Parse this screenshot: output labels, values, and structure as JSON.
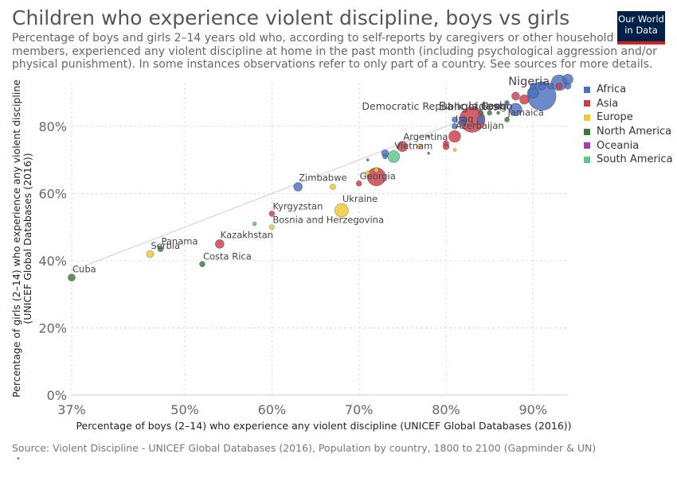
{
  "header": {
    "title": "Children who experience violent discipline, boys vs girls",
    "subtitle": "Percentage of boys and girls 2–14 years old who, according to self-reports by caregivers or other household members, experienced any violent discipline at home in the past month (including psychological aggression and/or physical punishment). In some instances observations refer to only part of a country. See sources for more details."
  },
  "logo": {
    "line1": "Our World",
    "line2": "in Data"
  },
  "footer": {
    "source": "Source: Violent Discipline - UNICEF Global Databases (2016), Population by country, 1800 to 2100 (Gapminder & UN)",
    "dot": "•"
  },
  "chart_data": {
    "type": "scatter",
    "xlabel": "Percentage of boys (2–14) who experience any violent discipline (UNICEF Global Databases (2016))",
    "ylabel": "Percentage of girls (2–14) who experience any violent discipline (UNICEF Global Databases (2016))",
    "xlim": [
      37,
      94
    ],
    "ylim": [
      0,
      93
    ],
    "xticks": [
      {
        "v": 37,
        "label": "37%"
      },
      {
        "v": 50,
        "label": "50%"
      },
      {
        "v": 60,
        "label": "60%"
      },
      {
        "v": 70,
        "label": "70%"
      },
      {
        "v": 80,
        "label": "80%"
      },
      {
        "v": 90,
        "label": "90%"
      }
    ],
    "yticks": [
      {
        "v": 0,
        "label": "0%"
      },
      {
        "v": 20,
        "label": "20%"
      },
      {
        "v": 40,
        "label": "40%"
      },
      {
        "v": 60,
        "label": "60%"
      },
      {
        "v": 80,
        "label": "80%"
      }
    ],
    "grid": true,
    "size_encoding": "population",
    "reference_line": {
      "from": 37,
      "to": 82,
      "style": "x = y"
    },
    "legend_position": "right",
    "legend": [
      {
        "name": "Africa",
        "color": "#4c6fbf"
      },
      {
        "name": "Asia",
        "color": "#cc3d4a"
      },
      {
        "name": "Europe",
        "color": "#f5c730"
      },
      {
        "name": "North America",
        "color": "#3c7a3c"
      },
      {
        "name": "Oceania",
        "color": "#a53fb5"
      },
      {
        "name": "South America",
        "color": "#5cc58a"
      }
    ],
    "points": [
      {
        "x": 37,
        "y": 35,
        "region": "North America",
        "size": 4.5,
        "label": "Cuba"
      },
      {
        "x": 46,
        "y": 42,
        "region": "Europe",
        "size": 4.5,
        "label": "Serbia"
      },
      {
        "x": 47.2,
        "y": 43.5,
        "region": "North America",
        "size": 3.5,
        "label": "Panama"
      },
      {
        "x": 52,
        "y": 39,
        "region": "North America",
        "size": 3.5,
        "label": "Costa Rica"
      },
      {
        "x": 54,
        "y": 45,
        "region": "Asia",
        "size": 5.5,
        "label": "Kazakhstan"
      },
      {
        "x": 58,
        "y": 51,
        "region": "South America",
        "size": 2.5
      },
      {
        "x": 60,
        "y": 50,
        "region": "Europe",
        "size": 3,
        "label": "Bosnia and Herzegovina"
      },
      {
        "x": 60,
        "y": 54,
        "region": "Asia",
        "size": 3.5,
        "label": "Kyrgyzstan"
      },
      {
        "x": 63,
        "y": 62,
        "region": "Africa",
        "size": 5.5,
        "label": "Zimbabwe"
      },
      {
        "x": 67,
        "y": 62,
        "region": "Europe",
        "size": 3.5
      },
      {
        "x": 68,
        "y": 55,
        "region": "Europe",
        "size": 8.5,
        "label": "Ukraine"
      },
      {
        "x": 70,
        "y": 63,
        "region": "Asia",
        "size": 3.5,
        "label": "Georgia"
      },
      {
        "x": 71,
        "y": 66,
        "region": "Europe",
        "size": 3
      },
      {
        "x": 71,
        "y": 70,
        "region": "North America",
        "size": 1.5
      },
      {
        "x": 72,
        "y": 65,
        "region": "Asia",
        "size": 11.5
      },
      {
        "x": 72,
        "y": 67,
        "region": "Europe",
        "size": 3
      },
      {
        "x": 73,
        "y": 72,
        "region": "Africa",
        "size": 4.5
      },
      {
        "x": 73,
        "y": 71,
        "region": "Africa",
        "size": 3
      },
      {
        "x": 74,
        "y": 71,
        "region": "South America",
        "size": 7.5,
        "label": "Vietnam"
      },
      {
        "x": 75,
        "y": 74,
        "region": "Asia",
        "size": 6.5,
        "label": "Argentina"
      },
      {
        "x": 77,
        "y": 74,
        "region": "Europe",
        "size": 3
      },
      {
        "x": 78,
        "y": 72,
        "region": "North America",
        "size": 1.5
      },
      {
        "x": 78,
        "y": 77,
        "region": "North America",
        "size": 1.5
      },
      {
        "x": 80,
        "y": 74,
        "region": "Asia",
        "size": 4
      },
      {
        "x": 80,
        "y": 75,
        "region": "Asia",
        "size": 3.5
      },
      {
        "x": 81,
        "y": 73,
        "region": "Europe",
        "size": 2
      },
      {
        "x": 81,
        "y": 77,
        "region": "Asia",
        "size": 7.5,
        "label": "Azerbaijan"
      },
      {
        "x": 81,
        "y": 80,
        "region": "Africa",
        "size": 3.5,
        "label": "Iraq"
      },
      {
        "x": 81,
        "y": 82,
        "region": "Africa",
        "size": 3.5
      },
      {
        "x": 82,
        "y": 81,
        "region": "Africa",
        "size": 3.5
      },
      {
        "x": 82,
        "y": 82,
        "region": "Africa",
        "size": 4
      },
      {
        "x": 83,
        "y": 82,
        "region": "Asia",
        "size": 16,
        "label": "Bangladesh"
      },
      {
        "x": 84,
        "y": 82,
        "region": "Africa",
        "size": 5
      },
      {
        "x": 84,
        "y": 84,
        "region": "North America",
        "size": 3,
        "label": "Nepal"
      },
      {
        "x": 85,
        "y": 84,
        "region": "North America",
        "size": 3
      },
      {
        "x": 86,
        "y": 86,
        "region": "Africa",
        "size": 3
      },
      {
        "x": 86,
        "y": 84,
        "region": "North America",
        "size": 2
      },
      {
        "x": 87,
        "y": 82,
        "region": "North America",
        "size": 3,
        "label": "Jamaica"
      },
      {
        "x": 87,
        "y": 87,
        "region": "Africa",
        "size": 3
      },
      {
        "x": 88,
        "y": 85,
        "region": "Africa",
        "size": 8
      },
      {
        "x": 88,
        "y": 89,
        "region": "Asia",
        "size": 5
      },
      {
        "x": 89,
        "y": 88,
        "region": "Asia",
        "size": 6
      },
      {
        "x": 90,
        "y": 90,
        "region": "Africa",
        "size": 7
      },
      {
        "x": 90,
        "y": 92,
        "region": "Africa",
        "size": 4
      },
      {
        "x": 91,
        "y": 89,
        "region": "Africa",
        "size": 18,
        "label": "Nigeria"
      },
      {
        "x": 91,
        "y": 92,
        "region": "Africa",
        "size": 5
      },
      {
        "x": 92,
        "y": 92,
        "region": "Africa",
        "size": 4
      },
      {
        "x": 93,
        "y": 93,
        "region": "Africa",
        "size": 10
      },
      {
        "x": 93,
        "y": 92,
        "region": "Asia",
        "size": 4
      },
      {
        "x": 94,
        "y": 94,
        "region": "Africa",
        "size": 6.5
      },
      {
        "x": 94,
        "y": 92,
        "region": "Africa",
        "size": 4
      }
    ],
    "annotations": [
      {
        "text": "Democratic Republic of Congo",
        "x": 79,
        "y": 85
      }
    ]
  }
}
